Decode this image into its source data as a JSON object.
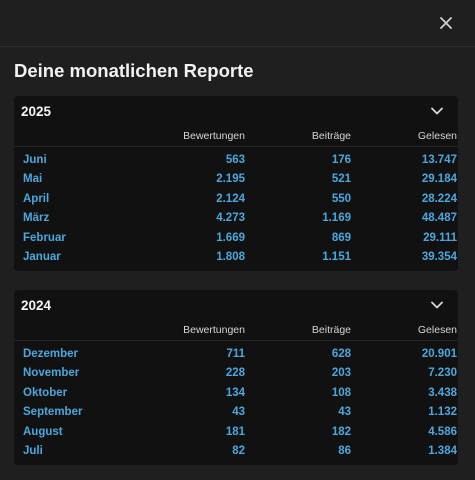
{
  "dialog": {
    "title": "Deine monatlichen Reporte"
  },
  "columns": {
    "ratings": "Bewertungen",
    "posts": "Beiträge",
    "read": "Gelesen"
  },
  "years": [
    {
      "year": "2025",
      "rows": [
        {
          "month": "Juni",
          "ratings": "563",
          "posts": "176",
          "read": "13.747"
        },
        {
          "month": "Mai",
          "ratings": "2.195",
          "posts": "521",
          "read": "29.184"
        },
        {
          "month": "April",
          "ratings": "2.124",
          "posts": "550",
          "read": "28.224"
        },
        {
          "month": "März",
          "ratings": "4.273",
          "posts": "1.169",
          "read": "48.487"
        },
        {
          "month": "Februar",
          "ratings": "1.669",
          "posts": "869",
          "read": "29.111"
        },
        {
          "month": "Januar",
          "ratings": "1.808",
          "posts": "1.151",
          "read": "39.354"
        }
      ]
    },
    {
      "year": "2024",
      "rows": [
        {
          "month": "Dezember",
          "ratings": "711",
          "posts": "628",
          "read": "20.901"
        },
        {
          "month": "November",
          "ratings": "228",
          "posts": "203",
          "read": "7.230"
        },
        {
          "month": "Oktober",
          "ratings": "134",
          "posts": "108",
          "read": "3.438"
        },
        {
          "month": "September",
          "ratings": "43",
          "posts": "43",
          "read": "1.132"
        },
        {
          "month": "August",
          "ratings": "181",
          "posts": "182",
          "read": "4.586"
        },
        {
          "month": "Juli",
          "ratings": "82",
          "posts": "86",
          "read": "1.384"
        }
      ]
    }
  ],
  "colors": {
    "accent": "#4aa8de",
    "background": "#1f1f1f",
    "panel": "#111111"
  },
  "icons": {
    "close": "close-icon",
    "collapse": "chevron-down-icon"
  }
}
